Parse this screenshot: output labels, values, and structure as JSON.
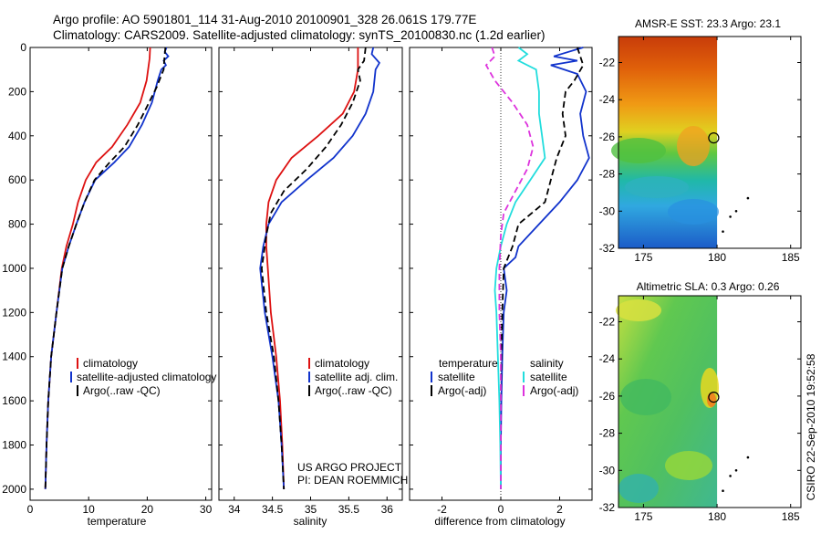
{
  "header": {
    "line1": "Argo profile: AO 5901801_114 31-Aug-2010 20100901_328 26.061S 179.77E",
    "line2": "Climatology: CARS2009. Satellite-adjusted climatology: synTS_20100830.nc (1.2d earlier)"
  },
  "side_stamp": "CSIRO 22-Sep-2010 19:52:58",
  "credit": {
    "line1": "US ARGO PROJECT",
    "line2": "PI: DEAN ROEMMICH"
  },
  "colors": {
    "red": "#dd1111",
    "blue": "#1133cc",
    "black": "#000000",
    "magenta": "#dd33dd",
    "cyan": "#22dddd"
  },
  "chart_data": [
    {
      "type": "line",
      "xlabel": "temperature",
      "xlim": [
        0,
        31
      ],
      "ylim": [
        0,
        2050
      ],
      "y_reversed": true,
      "xticks": [
        "0",
        "10",
        "20",
        "30"
      ],
      "yticks": [
        "0",
        "200",
        "400",
        "600",
        "800",
        "1000",
        "1200",
        "1400",
        "1600",
        "1800",
        "2000"
      ],
      "legend": [
        "climatology",
        "satellite-adjusted climatology",
        "Argo(..raw -QC)"
      ],
      "series": [
        {
          "name": "climatology",
          "color": "red",
          "dash": "solid",
          "points": [
            [
              20.5,
              0
            ],
            [
              20.4,
              50
            ],
            [
              19.9,
              150
            ],
            [
              18.8,
              250
            ],
            [
              16.6,
              350
            ],
            [
              14.0,
              450
            ],
            [
              11.3,
              520
            ],
            [
              9.5,
              600
            ],
            [
              8.2,
              700
            ],
            [
              7.3,
              800
            ],
            [
              6.2,
              900
            ],
            [
              5.4,
              1000
            ],
            [
              4.5,
              1200
            ],
            [
              3.6,
              1400
            ],
            [
              3.1,
              1600
            ],
            [
              2.8,
              1800
            ],
            [
              2.6,
              2000
            ]
          ]
        },
        {
          "name": "satellite-adjusted climatology",
          "color": "blue",
          "dash": "solid",
          "points": [
            [
              23.3,
              0
            ],
            [
              23.0,
              20
            ],
            [
              23.6,
              40
            ],
            [
              22.8,
              60
            ],
            [
              23.2,
              80
            ],
            [
              22.4,
              100
            ],
            [
              21.8,
              150
            ],
            [
              20.8,
              250
            ],
            [
              19.1,
              350
            ],
            [
              16.9,
              450
            ],
            [
              14.4,
              520
            ],
            [
              11.1,
              600
            ],
            [
              9.3,
              700
            ],
            [
              7.9,
              800
            ],
            [
              6.6,
              900
            ],
            [
              5.5,
              1000
            ],
            [
              4.5,
              1200
            ],
            [
              3.6,
              1400
            ],
            [
              3.1,
              1600
            ],
            [
              2.8,
              1800
            ],
            [
              2.6,
              2000
            ]
          ]
        },
        {
          "name": "Argo(..raw -QC)",
          "color": "black",
          "dash": "dash",
          "points": [
            [
              23.1,
              0
            ],
            [
              22.9,
              60
            ],
            [
              22.8,
              100
            ],
            [
              21.6,
              180
            ],
            [
              20.3,
              250
            ],
            [
              18.4,
              350
            ],
            [
              16.1,
              450
            ],
            [
              13.6,
              520
            ],
            [
              11.0,
              600
            ],
            [
              9.3,
              700
            ],
            [
              7.9,
              800
            ],
            [
              6.6,
              900
            ],
            [
              5.5,
              1000
            ],
            [
              4.5,
              1200
            ],
            [
              3.6,
              1400
            ],
            [
              3.1,
              1600
            ],
            [
              2.8,
              1800
            ],
            [
              2.6,
              2000
            ]
          ]
        }
      ]
    },
    {
      "type": "line",
      "xlabel": "salinity",
      "xlim": [
        33.8,
        36.2
      ],
      "ylim": [
        0,
        2050
      ],
      "y_reversed": true,
      "xticks": [
        "34",
        "34.5",
        "35",
        "35.5",
        "36"
      ],
      "legend": [
        "climatology",
        "satellite adj. clim.",
        "Argo(..raw -QC)"
      ],
      "series": [
        {
          "name": "climatology",
          "color": "red",
          "dash": "solid",
          "points": [
            [
              35.62,
              0
            ],
            [
              35.62,
              100
            ],
            [
              35.57,
              200
            ],
            [
              35.42,
              300
            ],
            [
              35.1,
              400
            ],
            [
              34.75,
              500
            ],
            [
              34.55,
              600
            ],
            [
              34.45,
              700
            ],
            [
              34.42,
              800
            ],
            [
              34.42,
              900
            ],
            [
              34.44,
              1000
            ],
            [
              34.48,
              1200
            ],
            [
              34.55,
              1400
            ],
            [
              34.6,
              1600
            ],
            [
              34.63,
              1800
            ],
            [
              34.65,
              2000
            ]
          ]
        },
        {
          "name": "satellite adj. clim.",
          "color": "blue",
          "dash": "solid",
          "points": [
            [
              35.82,
              0
            ],
            [
              35.8,
              30
            ],
            [
              35.9,
              70
            ],
            [
              35.85,
              100
            ],
            [
              35.82,
              200
            ],
            [
              35.72,
              300
            ],
            [
              35.55,
              400
            ],
            [
              35.3,
              500
            ],
            [
              34.95,
              600
            ],
            [
              34.62,
              700
            ],
            [
              34.45,
              800
            ],
            [
              34.38,
              900
            ],
            [
              34.34,
              1000
            ],
            [
              34.4,
              1200
            ],
            [
              34.5,
              1400
            ],
            [
              34.58,
              1600
            ],
            [
              34.62,
              1800
            ],
            [
              34.65,
              2000
            ]
          ]
        },
        {
          "name": "Argo(..raw -QC)",
          "color": "black",
          "dash": "dash",
          "points": [
            [
              35.72,
              0
            ],
            [
              35.7,
              60
            ],
            [
              35.62,
              100
            ],
            [
              35.65,
              150
            ],
            [
              35.55,
              250
            ],
            [
              35.4,
              350
            ],
            [
              35.2,
              450
            ],
            [
              34.95,
              550
            ],
            [
              34.65,
              650
            ],
            [
              34.48,
              750
            ],
            [
              34.42,
              850
            ],
            [
              34.38,
              950
            ],
            [
              34.36,
              1000
            ],
            [
              34.42,
              1200
            ],
            [
              34.52,
              1400
            ],
            [
              34.58,
              1600
            ],
            [
              34.62,
              1800
            ],
            [
              34.65,
              2000
            ]
          ]
        }
      ]
    },
    {
      "type": "line",
      "xlabel": "difference from climatology",
      "xlim": [
        -3.1,
        3.1
      ],
      "ylim": [
        0,
        2050
      ],
      "y_reversed": true,
      "xticks": [
        "-2",
        "0",
        "2"
      ],
      "legend_headers": [
        "temperature",
        "salinity"
      ],
      "legend": [
        "satellite",
        "Argo(-adj)",
        "satellite",
        "Argo(-adj)"
      ],
      "series": [
        {
          "name": "satellite",
          "group": "temperature",
          "color": "blue",
          "dash": "solid",
          "points": [
            [
              2.8,
              0
            ],
            [
              1.8,
              40
            ],
            [
              2.6,
              60
            ],
            [
              1.7,
              80
            ],
            [
              2.6,
              120
            ],
            [
              2.9,
              200
            ],
            [
              2.7,
              300
            ],
            [
              2.8,
              400
            ],
            [
              3.0,
              500
            ],
            [
              2.6,
              600
            ],
            [
              2.0,
              700
            ],
            [
              1.3,
              800
            ],
            [
              0.6,
              900
            ],
            [
              0.5,
              950
            ],
            [
              0.1,
              1000
            ],
            [
              0.2,
              1100
            ],
            [
              0.1,
              1200
            ],
            [
              0.05,
              1400
            ],
            [
              0.02,
              1600
            ],
            [
              0.0,
              1800
            ],
            [
              0.0,
              2000
            ]
          ]
        },
        {
          "name": "Argo(-adj)",
          "group": "temperature",
          "color": "black",
          "dash": "dash",
          "points": [
            [
              2.6,
              0
            ],
            [
              2.8,
              80
            ],
            [
              2.5,
              150
            ],
            [
              2.2,
              200
            ],
            [
              2.1,
              300
            ],
            [
              2.2,
              400
            ],
            [
              1.9,
              500
            ],
            [
              1.7,
              600
            ],
            [
              1.5,
              700
            ],
            [
              0.6,
              800
            ],
            [
              0.4,
              900
            ],
            [
              0.1,
              1000
            ],
            [
              0.05,
              1200
            ],
            [
              0.02,
              1400
            ],
            [
              0.0,
              1600
            ],
            [
              0.0,
              1800
            ],
            [
              0.0,
              2000
            ]
          ]
        },
        {
          "name": "satellite",
          "group": "salinity",
          "color": "cyan",
          "dash": "solid",
          "points": [
            [
              0.6,
              0
            ],
            [
              0.9,
              30
            ],
            [
              0.6,
              60
            ],
            [
              1.2,
              100
            ],
            [
              1.3,
              200
            ],
            [
              1.3,
              300
            ],
            [
              1.4,
              400
            ],
            [
              1.5,
              500
            ],
            [
              1.0,
              600
            ],
            [
              0.5,
              700
            ],
            [
              0.2,
              800
            ],
            [
              0.0,
              900
            ],
            [
              -0.15,
              1000
            ],
            [
              -0.2,
              1100
            ],
            [
              -0.15,
              1200
            ],
            [
              -0.1,
              1400
            ],
            [
              -0.05,
              1600
            ],
            [
              -0.02,
              1800
            ],
            [
              0.0,
              2000
            ]
          ]
        },
        {
          "name": "Argo(-adj)",
          "group": "salinity",
          "color": "magenta",
          "dash": "dash",
          "points": [
            [
              -0.3,
              0
            ],
            [
              -0.2,
              40
            ],
            [
              -0.5,
              80
            ],
            [
              -0.2,
              150
            ],
            [
              0.4,
              250
            ],
            [
              0.9,
              350
            ],
            [
              1.1,
              450
            ],
            [
              0.9,
              550
            ],
            [
              0.5,
              650
            ],
            [
              0.1,
              750
            ],
            [
              0.0,
              850
            ],
            [
              -0.05,
              1000
            ],
            [
              -0.05,
              1200
            ],
            [
              0.0,
              1400
            ],
            [
              0.0,
              1600
            ],
            [
              0.0,
              1800
            ],
            [
              0.0,
              2000
            ]
          ]
        }
      ]
    },
    {
      "type": "heatmap",
      "title": "AMSR-E SST: 23.3 Argo: 23.1",
      "xlim": [
        173.3,
        185.7
      ],
      "ylim": [
        -32,
        -20.6
      ],
      "xticks": [
        "175",
        "180",
        "185"
      ],
      "yticks": [
        "-22",
        "-24",
        "-26",
        "-28",
        "-30",
        "-32"
      ],
      "data_extent_lon_max": 180,
      "marker": {
        "lon": 179.77,
        "lat": -26.061
      },
      "track": [
        [
          182.1,
          -29.3
        ],
        [
          181.3,
          -30.0
        ],
        [
          180.9,
          -30.3
        ],
        [
          180.4,
          -31.1
        ]
      ]
    },
    {
      "type": "heatmap",
      "title": "Altimetric SLA: 0.3 Argo: 0.26",
      "xlim": [
        173.3,
        185.7
      ],
      "ylim": [
        -32,
        -20.6
      ],
      "xticks": [
        "175",
        "180",
        "185"
      ],
      "yticks": [
        "-22",
        "-24",
        "-26",
        "-28",
        "-30",
        "-32"
      ],
      "data_extent_lon_max": 180,
      "marker": {
        "lon": 179.77,
        "lat": -26.061
      },
      "track": [
        [
          182.1,
          -29.3
        ],
        [
          181.3,
          -30.0
        ],
        [
          180.9,
          -30.3
        ],
        [
          180.4,
          -31.1
        ]
      ]
    }
  ]
}
